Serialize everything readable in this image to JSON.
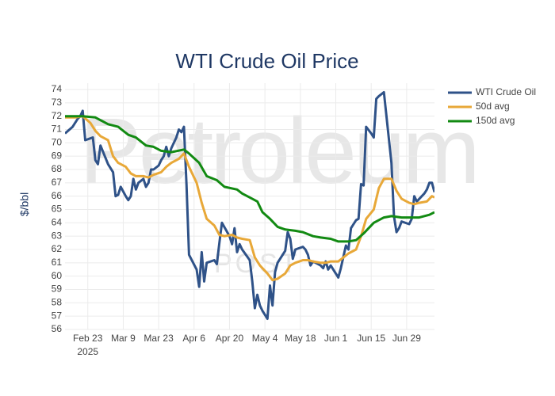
{
  "chart_data": {
    "type": "line",
    "title": "WTI Crude Oil Price",
    "y_label": "$/bbl",
    "watermark": "Petroleum",
    "watermark_sub": "POST",
    "x_year": "2025",
    "xlim": [
      "2025-02-14",
      "2025-07-10"
    ],
    "xticks": [
      {
        "value": "2025-02-23",
        "label": "Feb 23"
      },
      {
        "value": "2025-03-09",
        "label": "Mar 9"
      },
      {
        "value": "2025-03-23",
        "label": "Mar 23"
      },
      {
        "value": "2025-04-06",
        "label": "Apr 6"
      },
      {
        "value": "2025-04-20",
        "label": "Apr 20"
      },
      {
        "value": "2025-05-04",
        "label": "May 4"
      },
      {
        "value": "2025-05-18",
        "label": "May 18"
      },
      {
        "value": "2025-06-01",
        "label": "Jun 1"
      },
      {
        "value": "2025-06-15",
        "label": "Jun 15"
      },
      {
        "value": "2025-06-29",
        "label": "Jun 29"
      }
    ],
    "ylim": [
      56,
      74
    ],
    "yticks": [
      56,
      57,
      58,
      59,
      60,
      61,
      62,
      63,
      64,
      65,
      66,
      67,
      68,
      69,
      70,
      71,
      72,
      73,
      74
    ],
    "grid": true,
    "legend": "right",
    "series": [
      {
        "name": "WTI Crude Oil",
        "color": "#2f5288",
        "x": [
          "2025-02-14",
          "2025-02-17",
          "2025-02-19",
          "2025-02-20",
          "2025-02-21",
          "2025-02-22",
          "2025-02-25",
          "2025-02-26",
          "2025-02-27",
          "2025-02-28",
          "2025-03-03",
          "2025-03-05",
          "2025-03-06",
          "2025-03-07",
          "2025-03-08",
          "2025-03-10",
          "2025-03-11",
          "2025-03-12",
          "2025-03-13",
          "2025-03-14",
          "2025-03-15",
          "2025-03-17",
          "2025-03-18",
          "2025-03-19",
          "2025-03-20",
          "2025-03-21",
          "2025-03-23",
          "2025-03-24",
          "2025-03-25",
          "2025-03-26",
          "2025-03-27",
          "2025-03-28",
          "2025-03-30",
          "2025-03-31",
          "2025-04-01",
          "2025-04-02",
          "2025-04-03",
          "2025-04-04",
          "2025-04-07",
          "2025-04-08",
          "2025-04-09",
          "2025-04-10",
          "2025-04-11",
          "2025-04-14",
          "2025-04-15",
          "2025-04-16",
          "2025-04-17",
          "2025-04-20",
          "2025-04-21",
          "2025-04-22",
          "2025-04-23",
          "2025-04-24",
          "2025-04-25",
          "2025-04-28",
          "2025-04-29",
          "2025-04-30",
          "2025-05-01",
          "2025-05-02",
          "2025-05-03",
          "2025-05-05",
          "2025-05-06",
          "2025-05-07",
          "2025-05-08",
          "2025-05-09",
          "2025-05-12",
          "2025-05-13",
          "2025-05-14",
          "2025-05-15",
          "2025-05-16",
          "2025-05-19",
          "2025-05-20",
          "2025-05-21",
          "2025-05-22",
          "2025-05-23",
          "2025-05-26",
          "2025-05-27",
          "2025-05-28",
          "2025-05-29",
          "2025-05-30",
          "2025-06-02",
          "2025-06-03",
          "2025-06-05",
          "2025-06-06",
          "2025-06-07",
          "2025-06-09",
          "2025-06-10",
          "2025-06-11",
          "2025-06-12",
          "2025-06-13",
          "2025-06-15",
          "2025-06-16",
          "2025-06-17",
          "2025-06-18",
          "2025-06-20",
          "2025-06-23",
          "2025-06-24",
          "2025-06-25",
          "2025-06-26",
          "2025-06-27",
          "2025-06-30",
          "2025-07-01",
          "2025-07-02",
          "2025-07-03",
          "2025-07-06",
          "2025-07-07",
          "2025-07-08",
          "2025-07-09",
          "2025-07-10"
        ],
        "values": [
          70.7,
          71.2,
          71.8,
          72.0,
          72.4,
          70.2,
          70.4,
          68.7,
          68.4,
          69.8,
          68.4,
          67.8,
          66.0,
          66.1,
          66.7,
          66.0,
          65.7,
          66.0,
          67.3,
          66.5,
          67.0,
          67.3,
          66.7,
          67.0,
          68.0,
          68.0,
          68.3,
          68.7,
          69.0,
          69.7,
          69.0,
          69.6,
          70.4,
          71.0,
          70.8,
          71.2,
          66.9,
          61.6,
          60.5,
          59.2,
          61.8,
          59.6,
          61.0,
          61.2,
          60.9,
          62.5,
          64.0,
          63.0,
          62.4,
          63.6,
          61.8,
          62.4,
          62.0,
          61.2,
          59.6,
          57.6,
          58.6,
          57.8,
          57.4,
          56.8,
          59.3,
          57.8,
          60.3,
          61.0,
          61.9,
          63.3,
          62.8,
          61.3,
          62.0,
          62.2,
          62.0,
          61.6,
          60.8,
          61.1,
          60.8,
          60.6,
          61.1,
          60.5,
          60.8,
          59.9,
          60.6,
          62.3,
          62.0,
          63.6,
          64.2,
          64.3,
          66.9,
          66.8,
          71.2,
          70.7,
          70.4,
          73.3,
          73.5,
          73.8,
          68.5,
          64.5,
          63.3,
          63.6,
          64.1,
          63.9,
          64.3,
          66.0,
          65.6,
          66.2,
          66.5,
          67.0,
          67.0,
          66.3
        ]
      },
      {
        "name": "50d avg",
        "color": "#e8a838",
        "x": [
          "2025-02-14",
          "2025-02-18",
          "2025-02-21",
          "2025-02-24",
          "2025-02-26",
          "2025-02-28",
          "2025-03-03",
          "2025-03-05",
          "2025-03-07",
          "2025-03-10",
          "2025-03-12",
          "2025-03-14",
          "2025-03-17",
          "2025-03-19",
          "2025-03-21",
          "2025-03-24",
          "2025-03-26",
          "2025-03-28",
          "2025-03-31",
          "2025-04-02",
          "2025-04-04",
          "2025-04-07",
          "2025-04-09",
          "2025-04-11",
          "2025-04-14",
          "2025-04-16",
          "2025-04-18",
          "2025-04-21",
          "2025-04-23",
          "2025-04-25",
          "2025-04-28",
          "2025-04-30",
          "2025-05-02",
          "2025-05-05",
          "2025-05-07",
          "2025-05-09",
          "2025-05-12",
          "2025-05-14",
          "2025-05-16",
          "2025-05-19",
          "2025-05-21",
          "2025-05-23",
          "2025-05-26",
          "2025-05-28",
          "2025-05-30",
          "2025-06-02",
          "2025-06-04",
          "2025-06-06",
          "2025-06-09",
          "2025-06-11",
          "2025-06-13",
          "2025-06-16",
          "2025-06-18",
          "2025-06-20",
          "2025-06-23",
          "2025-06-25",
          "2025-06-27",
          "2025-06-30",
          "2025-07-02",
          "2025-07-04",
          "2025-07-07",
          "2025-07-09",
          "2025-07-10"
        ],
        "values": [
          71.9,
          71.9,
          72.0,
          71.5,
          70.9,
          70.5,
          70.2,
          69.0,
          68.5,
          68.2,
          67.7,
          67.5,
          67.5,
          67.4,
          67.6,
          67.8,
          68.2,
          68.5,
          68.8,
          69.2,
          68.2,
          67.0,
          65.5,
          64.3,
          63.8,
          63.1,
          63.0,
          63.1,
          62.9,
          62.8,
          62.7,
          61.4,
          60.8,
          60.2,
          59.7,
          59.8,
          60.2,
          60.8,
          61.0,
          61.2,
          61.2,
          61.1,
          61.0,
          61.0,
          61.1,
          61.1,
          61.4,
          61.7,
          62.0,
          63.0,
          64.3,
          65.0,
          66.6,
          67.3,
          67.3,
          66.4,
          65.8,
          65.5,
          65.4,
          65.5,
          65.6,
          66.0,
          65.9
        ]
      },
      {
        "name": "150d avg",
        "color": "#128a12",
        "x": [
          "2025-02-14",
          "2025-02-21",
          "2025-02-26",
          "2025-03-03",
          "2025-03-07",
          "2025-03-11",
          "2025-03-14",
          "2025-03-18",
          "2025-03-21",
          "2025-03-24",
          "2025-03-28",
          "2025-04-02",
          "2025-04-04",
          "2025-04-08",
          "2025-04-11",
          "2025-04-15",
          "2025-04-18",
          "2025-04-23",
          "2025-04-25",
          "2025-04-28",
          "2025-05-01",
          "2025-05-03",
          "2025-05-06",
          "2025-05-09",
          "2025-05-12",
          "2025-05-16",
          "2025-05-19",
          "2025-05-23",
          "2025-05-26",
          "2025-05-30",
          "2025-06-02",
          "2025-06-06",
          "2025-06-09",
          "2025-06-12",
          "2025-06-16",
          "2025-06-20",
          "2025-06-23",
          "2025-06-27",
          "2025-07-01",
          "2025-07-04",
          "2025-07-08",
          "2025-07-10"
        ],
        "values": [
          72.0,
          72.0,
          71.9,
          71.4,
          71.2,
          70.6,
          70.4,
          69.8,
          69.7,
          69.4,
          69.3,
          69.5,
          69.2,
          68.5,
          67.5,
          67.2,
          66.7,
          66.5,
          66.2,
          65.9,
          65.6,
          64.8,
          64.3,
          63.7,
          63.5,
          63.4,
          63.3,
          63.0,
          62.9,
          62.8,
          62.6,
          62.6,
          62.7,
          63.2,
          64.0,
          64.4,
          64.5,
          64.4,
          64.4,
          64.4,
          64.6,
          64.8
        ]
      }
    ]
  }
}
